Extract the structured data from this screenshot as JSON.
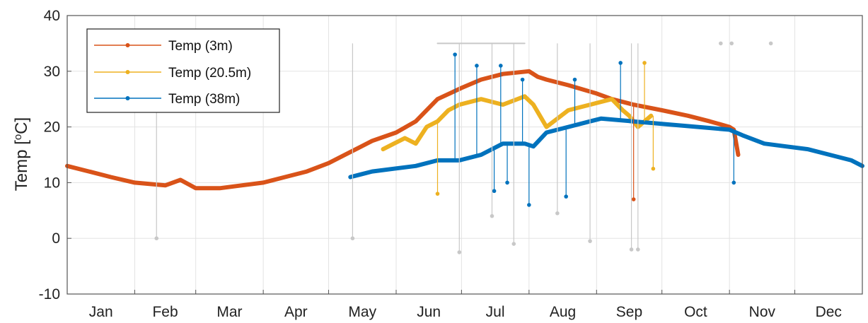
{
  "chart_data": {
    "type": "line",
    "ylabel_main": "Temp [",
    "ylabel_sup": "o",
    "ylabel_unit": "C]",
    "ylim": [
      -10,
      40
    ],
    "yticks": [
      -10,
      0,
      10,
      20,
      30,
      40
    ],
    "xlim": [
      0,
      365
    ],
    "months": [
      "Jan",
      "Feb",
      "Mar",
      "Apr",
      "May",
      "Jun",
      "Jul",
      "Aug",
      "Sep",
      "Oct",
      "Nov",
      "Dec"
    ],
    "month_starts": [
      0,
      31,
      59,
      90,
      120,
      151,
      181,
      212,
      243,
      273,
      304,
      334,
      365
    ],
    "grid": true,
    "legend_position": "top-left",
    "series": [
      {
        "name": "Temp (3m)",
        "color": "#d95319",
        "x": [
          0,
          10,
          20,
          31,
          45,
          52,
          59,
          70,
          80,
          90,
          100,
          110,
          120,
          130,
          140,
          151,
          160,
          170,
          181,
          190,
          200,
          212,
          216,
          220,
          230,
          243,
          250,
          260,
          273,
          285,
          295,
          304,
          306,
          308
        ],
        "y": [
          13,
          12,
          11,
          10,
          9.5,
          10.5,
          9,
          9,
          9.5,
          10,
          11,
          12,
          13.5,
          15.5,
          17.5,
          19,
          21,
          25,
          27,
          28.5,
          29.5,
          30,
          29,
          28.5,
          27.5,
          26,
          25,
          24,
          23,
          22,
          21,
          20,
          19.5,
          15
        ]
      },
      {
        "name": "Temp (20.5m)",
        "color": "#edb120",
        "x": [
          145,
          150,
          155,
          160,
          165,
          170,
          175,
          180,
          190,
          200,
          210,
          214,
          220,
          230,
          240,
          250,
          255,
          258,
          262,
          268
        ],
        "y": [
          16,
          17,
          18,
          17,
          20,
          21,
          23,
          24,
          25,
          24,
          25.5,
          24,
          20,
          23,
          24,
          25,
          23,
          22,
          20,
          22
        ]
      },
      {
        "name": "Temp (38m)",
        "color": "#0072bd",
        "x": [
          130,
          140,
          150,
          160,
          170,
          180,
          190,
          200,
          210,
          214,
          220,
          230,
          240,
          245,
          304,
          310,
          320,
          330,
          340,
          350,
          360,
          365
        ],
        "y": [
          11,
          12,
          12.5,
          13,
          14,
          14,
          15,
          17,
          17,
          16.5,
          19,
          20,
          21,
          21.5,
          19.5,
          18.5,
          17,
          16.5,
          16,
          15,
          14,
          13
        ]
      },
      {
        "name": "",
        "color": "#c8c8c8",
        "x": [
          170,
          180,
          190,
          200,
          210
        ],
        "y": [
          35,
          35,
          35,
          35,
          35
        ]
      }
    ],
    "spike_points": [
      {
        "series": 2,
        "x": 178,
        "y": 33
      },
      {
        "series": 2,
        "x": 188,
        "y": 31
      },
      {
        "series": 2,
        "x": 199,
        "y": 31
      },
      {
        "series": 2,
        "x": 209,
        "y": 28.5
      },
      {
        "series": 2,
        "x": 233,
        "y": 28.5
      },
      {
        "series": 2,
        "x": 254,
        "y": 31.5
      },
      {
        "series": 2,
        "x": 212,
        "y": 6
      },
      {
        "series": 2,
        "x": 229,
        "y": 7.5
      },
      {
        "series": 2,
        "x": 196,
        "y": 8.5
      },
      {
        "series": 2,
        "x": 202,
        "y": 10
      },
      {
        "series": 2,
        "x": 306,
        "y": 10
      },
      {
        "series": 1,
        "x": 170,
        "y": 8
      },
      {
        "series": 1,
        "x": 269,
        "y": 12.5
      },
      {
        "series": 1,
        "x": 265,
        "y": 31.5
      },
      {
        "series": 0,
        "x": 260,
        "y": 7
      },
      {
        "series": 3,
        "x": 41,
        "y": 0
      },
      {
        "series": 3,
        "x": 131,
        "y": 0
      },
      {
        "series": 3,
        "x": 180,
        "y": -2.5
      },
      {
        "series": 3,
        "x": 195,
        "y": 4
      },
      {
        "series": 3,
        "x": 205,
        "y": -1
      },
      {
        "series": 3,
        "x": 225,
        "y": 4.5
      },
      {
        "series": 3,
        "x": 240,
        "y": -0.5
      },
      {
        "series": 3,
        "x": 259,
        "y": -2
      },
      {
        "series": 3,
        "x": 262,
        "y": -2
      },
      {
        "series": 3,
        "x": 305,
        "y": 35
      },
      {
        "series": 3,
        "x": 300,
        "y": 35
      },
      {
        "series": 3,
        "x": 323,
        "y": 35
      }
    ]
  }
}
